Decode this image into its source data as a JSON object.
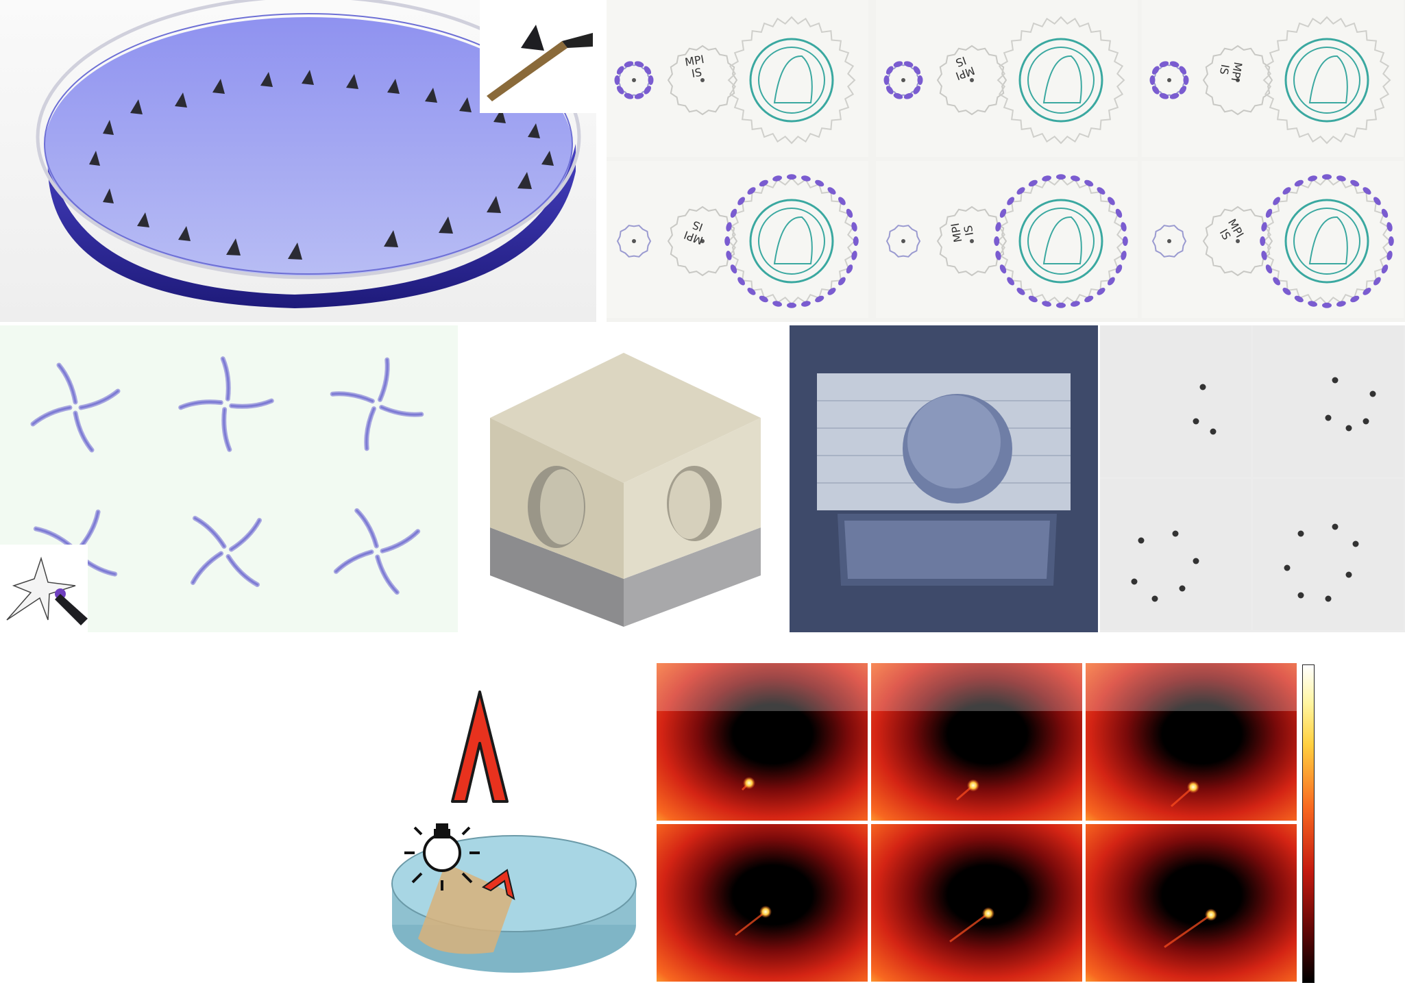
{
  "gear_panel": {
    "gear_labels": [
      {
        "line1": "MPI",
        "line2": "IS"
      },
      {
        "line1": "MPI",
        "line2": "IS"
      },
      {
        "line1": "MPI",
        "line2": "IS"
      },
      {
        "line1": "MPI",
        "line2": "IS"
      },
      {
        "line1": "MPI",
        "line2": "IS"
      },
      {
        "line1": "MPI",
        "line2": "IS"
      }
    ]
  },
  "colors": {
    "dish_liquid": "#6a6cd8",
    "swimmer_fin": "#2b2b33",
    "gear_purple": "#7a5cd0",
    "seal_teal": "#3aa8a0",
    "cube_top": "#d9d3bd",
    "cube_base": "#9c9c9e",
    "heat_hot": "#ffe060",
    "heat_mid": "#e83018",
    "heat_cold": "#000000",
    "arrow_red": "#e8321e",
    "petri_water": "#a8d6e4",
    "light_beam": "#d8b27a"
  },
  "icons": {
    "bulb": "light-bulb-icon",
    "tweezers": "tweezers-icon"
  }
}
